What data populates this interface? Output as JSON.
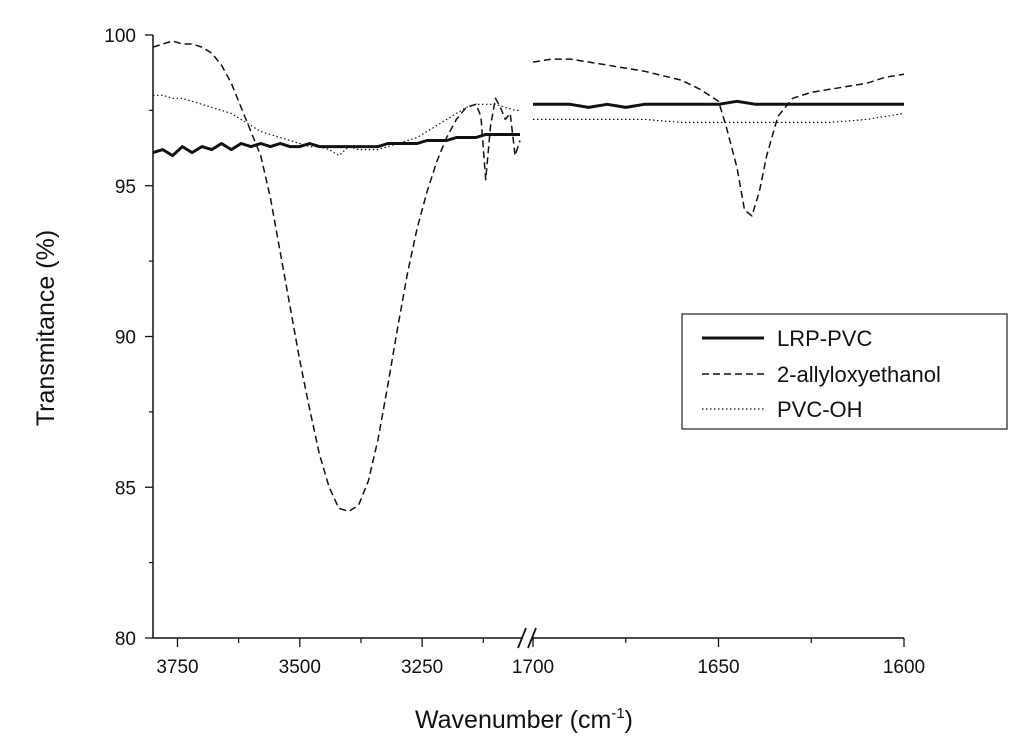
{
  "chart_data": {
    "type": "line",
    "title": "",
    "xlabel": "Wavenumber (cm",
    "xlabel_superscript": "-1",
    "xlabel_suffix": ")",
    "ylabel": "Transmitance (%)",
    "ylim": [
      80,
      100
    ],
    "yticks": [
      80,
      85,
      90,
      95,
      100
    ],
    "x_axis_broken": true,
    "x_segments": [
      {
        "range": [
          3800,
          3050
        ],
        "reversed": true,
        "ticks": [
          3750,
          3500,
          3250
        ]
      },
      {
        "range": [
          1700,
          1600
        ],
        "reversed": true,
        "ticks": [
          1700,
          1650,
          1600
        ]
      }
    ],
    "legend_position": "right",
    "series": [
      {
        "name": "LRP-PVC",
        "style": "solid",
        "color": "#111111",
        "segment1": [
          [
            3800,
            96.1
          ],
          [
            3780,
            96.2
          ],
          [
            3760,
            96.0
          ],
          [
            3740,
            96.3
          ],
          [
            3720,
            96.1
          ],
          [
            3700,
            96.3
          ],
          [
            3680,
            96.2
          ],
          [
            3660,
            96.4
          ],
          [
            3640,
            96.2
          ],
          [
            3620,
            96.4
          ],
          [
            3600,
            96.3
          ],
          [
            3580,
            96.4
          ],
          [
            3560,
            96.3
          ],
          [
            3540,
            96.4
          ],
          [
            3520,
            96.3
          ],
          [
            3500,
            96.3
          ],
          [
            3480,
            96.4
          ],
          [
            3460,
            96.3
          ],
          [
            3440,
            96.3
          ],
          [
            3420,
            96.3
          ],
          [
            3400,
            96.3
          ],
          [
            3380,
            96.3
          ],
          [
            3360,
            96.3
          ],
          [
            3340,
            96.3
          ],
          [
            3320,
            96.4
          ],
          [
            3300,
            96.4
          ],
          [
            3280,
            96.4
          ],
          [
            3260,
            96.4
          ],
          [
            3240,
            96.5
          ],
          [
            3220,
            96.5
          ],
          [
            3200,
            96.5
          ],
          [
            3180,
            96.6
          ],
          [
            3160,
            96.6
          ],
          [
            3140,
            96.6
          ],
          [
            3120,
            96.7
          ],
          [
            3100,
            96.7
          ],
          [
            3080,
            96.7
          ],
          [
            3060,
            96.7
          ],
          [
            3050,
            96.7
          ]
        ],
        "segment2": [
          [
            1700,
            97.7
          ],
          [
            1690,
            97.7
          ],
          [
            1685,
            97.6
          ],
          [
            1680,
            97.7
          ],
          [
            1675,
            97.6
          ],
          [
            1670,
            97.7
          ],
          [
            1665,
            97.7
          ],
          [
            1660,
            97.7
          ],
          [
            1655,
            97.7
          ],
          [
            1650,
            97.7
          ],
          [
            1645,
            97.8
          ],
          [
            1640,
            97.7
          ],
          [
            1635,
            97.7
          ],
          [
            1630,
            97.7
          ],
          [
            1625,
            97.7
          ],
          [
            1620,
            97.7
          ],
          [
            1615,
            97.7
          ],
          [
            1610,
            97.7
          ],
          [
            1605,
            97.7
          ],
          [
            1600,
            97.7
          ]
        ]
      },
      {
        "name": "2-allyloxyethanol",
        "style": "dashed",
        "color": "#111111",
        "segment1": [
          [
            3800,
            99.6
          ],
          [
            3780,
            99.7
          ],
          [
            3760,
            99.8
          ],
          [
            3740,
            99.7
          ],
          [
            3720,
            99.7
          ],
          [
            3700,
            99.6
          ],
          [
            3680,
            99.4
          ],
          [
            3660,
            99.0
          ],
          [
            3640,
            98.4
          ],
          [
            3620,
            97.6
          ],
          [
            3600,
            96.8
          ],
          [
            3580,
            96.0
          ],
          [
            3560,
            94.6
          ],
          [
            3540,
            92.8
          ],
          [
            3520,
            91.0
          ],
          [
            3500,
            89.2
          ],
          [
            3480,
            87.6
          ],
          [
            3460,
            86.1
          ],
          [
            3440,
            85.0
          ],
          [
            3420,
            84.3
          ],
          [
            3400,
            84.2
          ],
          [
            3380,
            84.4
          ],
          [
            3360,
            85.2
          ],
          [
            3340,
            86.6
          ],
          [
            3320,
            88.4
          ],
          [
            3300,
            90.3
          ],
          [
            3280,
            92.1
          ],
          [
            3260,
            93.6
          ],
          [
            3240,
            94.8
          ],
          [
            3220,
            95.8
          ],
          [
            3200,
            96.6
          ],
          [
            3180,
            97.2
          ],
          [
            3160,
            97.6
          ],
          [
            3140,
            97.7
          ],
          [
            3130,
            97.3
          ],
          [
            3120,
            95.2
          ],
          [
            3110,
            97.0
          ],
          [
            3100,
            97.9
          ],
          [
            3090,
            97.6
          ],
          [
            3080,
            97.2
          ],
          [
            3070,
            97.4
          ],
          [
            3060,
            96.0
          ],
          [
            3050,
            96.5
          ]
        ],
        "segment2": [
          [
            1700,
            99.1
          ],
          [
            1695,
            99.2
          ],
          [
            1690,
            99.2
          ],
          [
            1680,
            99.0
          ],
          [
            1670,
            98.8
          ],
          [
            1660,
            98.5
          ],
          [
            1655,
            98.2
          ],
          [
            1650,
            97.8
          ],
          [
            1648,
            97.0
          ],
          [
            1645,
            95.6
          ],
          [
            1643,
            94.2
          ],
          [
            1641,
            94.0
          ],
          [
            1639,
            94.8
          ],
          [
            1637,
            96.0
          ],
          [
            1634,
            97.3
          ],
          [
            1630,
            97.9
          ],
          [
            1625,
            98.1
          ],
          [
            1620,
            98.2
          ],
          [
            1615,
            98.3
          ],
          [
            1610,
            98.4
          ],
          [
            1605,
            98.6
          ],
          [
            1600,
            98.7
          ]
        ]
      },
      {
        "name": "PVC-OH",
        "style": "dotted",
        "color": "#111111",
        "segment1": [
          [
            3800,
            98.0
          ],
          [
            3780,
            98.0
          ],
          [
            3760,
            97.9
          ],
          [
            3740,
            97.9
          ],
          [
            3720,
            97.8
          ],
          [
            3700,
            97.7
          ],
          [
            3680,
            97.6
          ],
          [
            3660,
            97.5
          ],
          [
            3640,
            97.4
          ],
          [
            3620,
            97.2
          ],
          [
            3600,
            97.0
          ],
          [
            3580,
            96.8
          ],
          [
            3560,
            96.7
          ],
          [
            3540,
            96.6
          ],
          [
            3520,
            96.5
          ],
          [
            3500,
            96.4
          ],
          [
            3480,
            96.3
          ],
          [
            3460,
            96.3
          ],
          [
            3440,
            96.2
          ],
          [
            3420,
            96.0
          ],
          [
            3400,
            96.3
          ],
          [
            3380,
            96.2
          ],
          [
            3360,
            96.2
          ],
          [
            3340,
            96.2
          ],
          [
            3320,
            96.3
          ],
          [
            3300,
            96.4
          ],
          [
            3280,
            96.5
          ],
          [
            3260,
            96.6
          ],
          [
            3240,
            96.8
          ],
          [
            3220,
            97.0
          ],
          [
            3200,
            97.2
          ],
          [
            3180,
            97.4
          ],
          [
            3160,
            97.6
          ],
          [
            3140,
            97.7
          ],
          [
            3120,
            97.7
          ],
          [
            3100,
            97.7
          ],
          [
            3080,
            97.6
          ],
          [
            3060,
            97.5
          ],
          [
            3050,
            97.5
          ]
        ],
        "segment2": [
          [
            1700,
            97.2
          ],
          [
            1690,
            97.2
          ],
          [
            1680,
            97.2
          ],
          [
            1670,
            97.2
          ],
          [
            1660,
            97.1
          ],
          [
            1650,
            97.1
          ],
          [
            1640,
            97.1
          ],
          [
            1630,
            97.1
          ],
          [
            1620,
            97.1
          ],
          [
            1610,
            97.2
          ],
          [
            1605,
            97.3
          ],
          [
            1600,
            97.4
          ]
        ]
      }
    ]
  }
}
